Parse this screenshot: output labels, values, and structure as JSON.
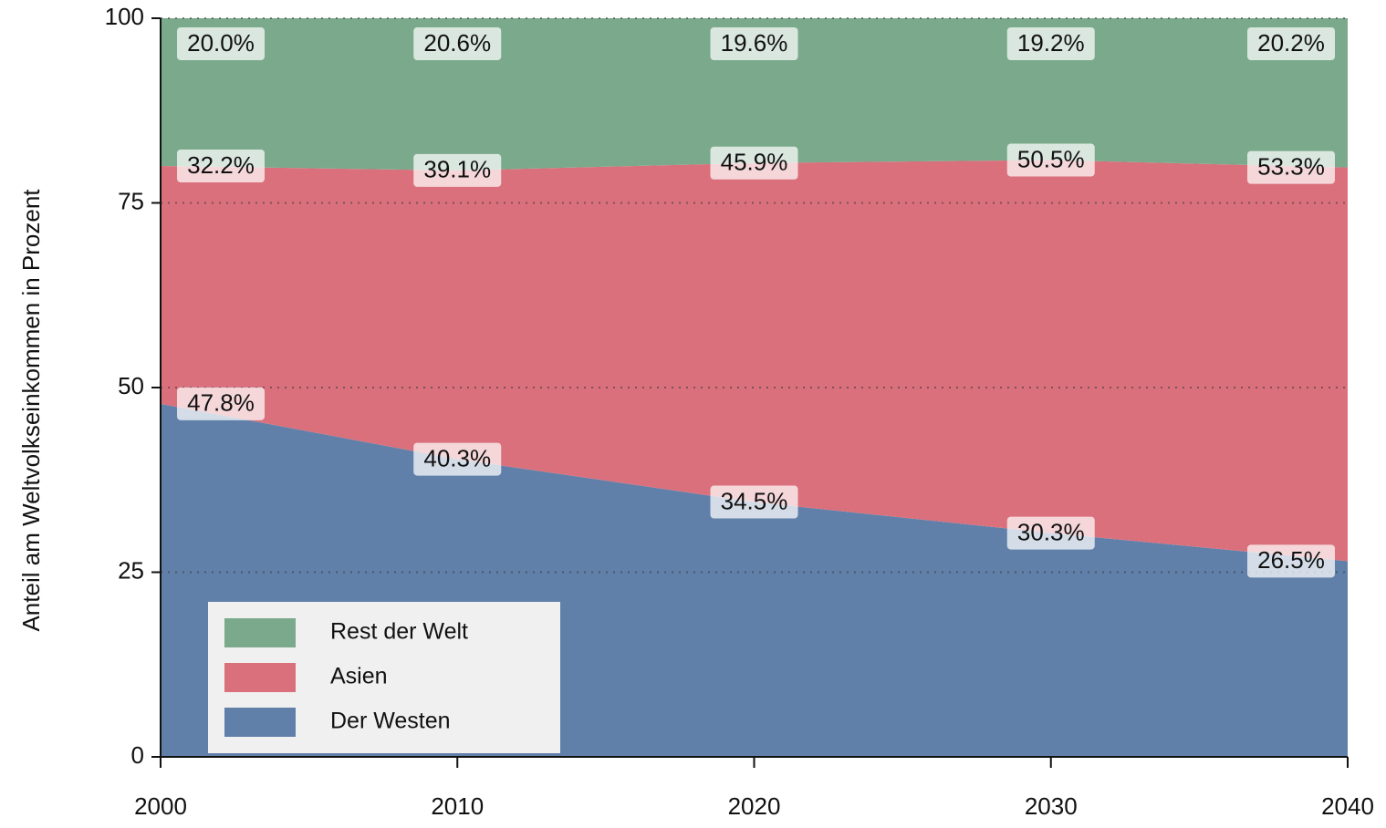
{
  "chart_data": {
    "type": "stacked-area",
    "ylabel": "Anteil am Weltvolkseinkommen in Prozent",
    "x": [
      2000,
      2010,
      2020,
      2030,
      2040
    ],
    "series": [
      {
        "name": "Der Westen",
        "color": "#6080aa",
        "values": [
          47.8,
          40.3,
          34.5,
          30.3,
          26.5
        ],
        "value_labels": [
          "47.8%",
          "40.3%",
          "34.5%",
          "30.3%",
          "26.5%"
        ]
      },
      {
        "name": "Asien",
        "color": "#d9707c",
        "values": [
          32.2,
          39.1,
          45.9,
          50.5,
          53.3
        ],
        "value_labels": [
          "32.2%",
          "39.1%",
          "45.9%",
          "50.5%",
          "53.3%"
        ]
      },
      {
        "name": "Rest der Welt",
        "color": "#7aa98b",
        "values": [
          20.0,
          20.6,
          19.6,
          19.2,
          20.2
        ],
        "value_labels": [
          "20.0%",
          "20.6%",
          "19.6%",
          "19.2%",
          "20.2%"
        ]
      }
    ],
    "xlim": [
      2000,
      2040
    ],
    "xticks": [
      2000,
      2010,
      2020,
      2030,
      2040
    ],
    "ylim": [
      0,
      100
    ],
    "yticks": [
      0,
      25,
      50,
      75,
      100
    ],
    "grid": true,
    "legend": "lower left"
  }
}
